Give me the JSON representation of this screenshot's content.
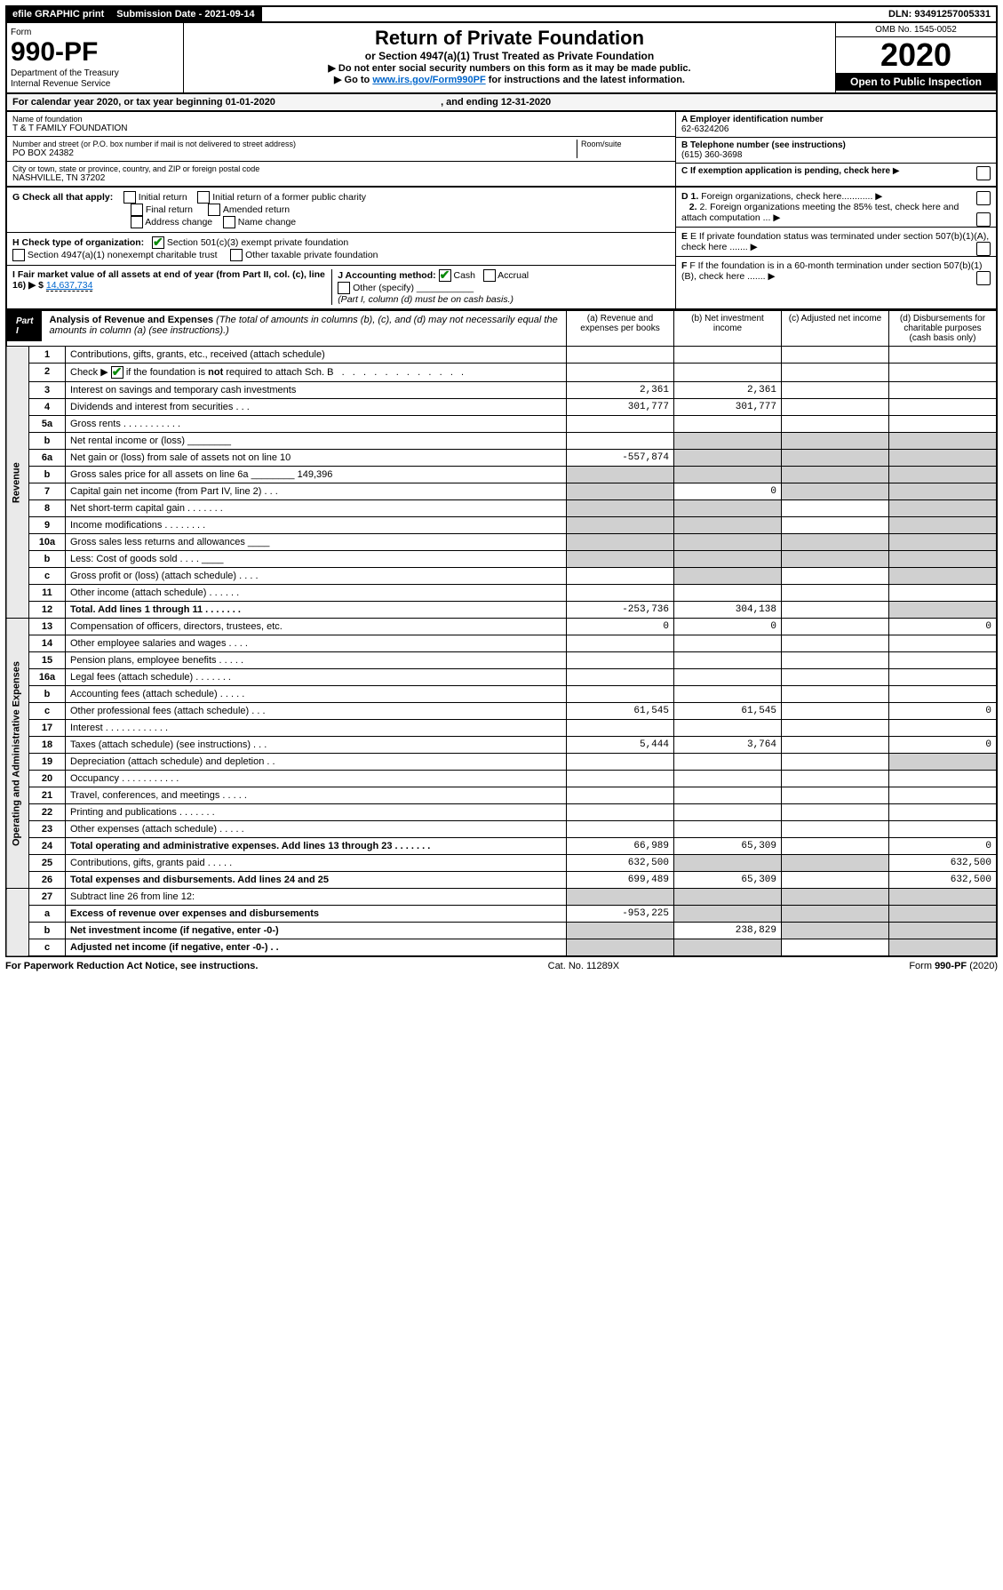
{
  "topbar": {
    "efile": "efile GRAPHIC print",
    "sub_label": "Submission Date - 2021-09-14",
    "dln": "DLN: 93491257005331"
  },
  "header": {
    "form_word": "Form",
    "form_num": "990-PF",
    "dept": "Department of the Treasury",
    "irs": "Internal Revenue Service",
    "title": "Return of Private Foundation",
    "subtitle": "or Section 4947(a)(1) Trust Treated as Private Foundation",
    "note1": "▶ Do not enter social security numbers on this form as it may be made public.",
    "note2_pre": "▶ Go to ",
    "note2_link": "www.irs.gov/Form990PF",
    "note2_post": " for instructions and the latest information.",
    "omb": "OMB No. 1545-0052",
    "year": "2020",
    "open": "Open to Public Inspection"
  },
  "calendar": {
    "pre": "For calendar year 2020, or tax year beginning ",
    "begin": "01-01-2020",
    "mid": " , and ending ",
    "end": "12-31-2020"
  },
  "entity": {
    "name_label": "Name of foundation",
    "name": "T & T FAMILY FOUNDATION",
    "addr_label": "Number and street (or P.O. box number if mail is not delivered to street address)",
    "addr": "PO BOX 24382",
    "room_label": "Room/suite",
    "city_label": "City or town, state or province, country, and ZIP or foreign postal code",
    "city": "NASHVILLE, TN  37202",
    "a_label": "A Employer identification number",
    "ein": "62-6324206",
    "b_label": "B Telephone number (see instructions)",
    "phone": "(615) 360-3698",
    "c_label": "C If exemption application is pending, check here"
  },
  "checks": {
    "g_label": "G Check all that apply:",
    "g_opts": [
      "Initial return",
      "Initial return of a former public charity",
      "Final return",
      "Amended return",
      "Address change",
      "Name change"
    ],
    "h_label": "H Check type of organization:",
    "h_sec501": "Section 501(c)(3) exempt private foundation",
    "h_4947": "Section 4947(a)(1) nonexempt charitable trust",
    "h_other": "Other taxable private foundation",
    "i_label": "I Fair market value of all assets at end of year (from Part II, col. (c), line 16) ▶ $",
    "fmv": "14,637,734",
    "j_label": "J Accounting method:",
    "j_cash": "Cash",
    "j_accrual": "Accrual",
    "j_other": "Other (specify)",
    "j_note": "(Part I, column (d) must be on cash basis.)",
    "d_label": "D 1. Foreign organizations, check here............",
    "d2_label": "2. Foreign organizations meeting the 85% test, check here and attach computation ...",
    "e_label": "E If private foundation status was terminated under section 507(b)(1)(A), check here .......",
    "f_label": "F If the foundation is in a 60-month termination under section 507(b)(1)(B), check here ......."
  },
  "part1": {
    "label": "Part I",
    "title": "Analysis of Revenue and Expenses",
    "title_note": " (The total of amounts in columns (b), (c), and (d) may not necessarily equal the amounts in column (a) (see instructions).)",
    "col_a": "(a) Revenue and expenses per books",
    "col_b": "(b) Net investment income",
    "col_c": "(c) Adjusted net income",
    "col_d": "(d) Disbursements for charitable purposes (cash basis only)"
  },
  "rows": [
    {
      "n": "1",
      "d": "Contributions, gifts, grants, etc., received (attach schedule)",
      "a": "",
      "b": "",
      "c": "",
      "dd": "",
      "section": "r"
    },
    {
      "n": "2",
      "d": "Check ▶ ☑ if the foundation is not required to attach Sch. B",
      "a": "",
      "b": "",
      "c": "",
      "dd": "",
      "section": "r",
      "bold_not": true,
      "dots": true
    },
    {
      "n": "3",
      "d": "Interest on savings and temporary cash investments",
      "a": "2,361",
      "b": "2,361",
      "c": "",
      "dd": "",
      "section": "r"
    },
    {
      "n": "4",
      "d": "Dividends and interest from securities  .  .  .",
      "a": "301,777",
      "b": "301,777",
      "c": "",
      "dd": "",
      "section": "r"
    },
    {
      "n": "5a",
      "d": "Gross rents  .  .  .  .  .  .  .  .  .  .  .",
      "a": "",
      "b": "",
      "c": "",
      "dd": "",
      "section": "r"
    },
    {
      "n": "b",
      "d": "Net rental income or (loss) ________",
      "a": "",
      "b": "",
      "c": "",
      "dd": "",
      "section": "r",
      "gray_b": true,
      "gray_c": true,
      "gray_d": true
    },
    {
      "n": "6a",
      "d": "Net gain or (loss) from sale of assets not on line 10",
      "a": "-557,874",
      "b": "",
      "c": "",
      "dd": "",
      "section": "r",
      "gray_b": true,
      "gray_c": true,
      "gray_d": true
    },
    {
      "n": "b",
      "d": "Gross sales price for all assets on line 6a ________ 149,396",
      "a": "",
      "b": "",
      "c": "",
      "dd": "",
      "section": "r",
      "gray_all": true
    },
    {
      "n": "7",
      "d": "Capital gain net income (from Part IV, line 2)  .  .  .",
      "a": "",
      "b": "0",
      "c": "",
      "dd": "",
      "section": "r",
      "gray_a": true,
      "gray_c": true,
      "gray_d": true
    },
    {
      "n": "8",
      "d": "Net short-term capital gain  .  .  .  .  .  .  .",
      "a": "",
      "b": "",
      "c": "",
      "dd": "",
      "section": "r",
      "gray_a": true,
      "gray_b": true,
      "gray_d": true
    },
    {
      "n": "9",
      "d": "Income modifications  .  .  .  .  .  .  .  .",
      "a": "",
      "b": "",
      "c": "",
      "dd": "",
      "section": "r",
      "gray_a": true,
      "gray_b": true,
      "gray_d": true
    },
    {
      "n": "10a",
      "d": "Gross sales less returns and allowances ____",
      "a": "",
      "b": "",
      "c": "",
      "dd": "",
      "section": "r",
      "gray_all": true
    },
    {
      "n": "b",
      "d": "Less: Cost of goods sold  .  .  .  . ____",
      "a": "",
      "b": "",
      "c": "",
      "dd": "",
      "section": "r",
      "gray_all": true
    },
    {
      "n": "c",
      "d": "Gross profit or (loss) (attach schedule)  .  .  .  .",
      "a": "",
      "b": "",
      "c": "",
      "dd": "",
      "section": "r",
      "gray_b": true,
      "gray_d": true
    },
    {
      "n": "11",
      "d": "Other income (attach schedule)  .  .  .  .  .  .",
      "a": "",
      "b": "",
      "c": "",
      "dd": "",
      "section": "r"
    },
    {
      "n": "12",
      "d": "Total. Add lines 1 through 11  .  .  .  .  .  .  .",
      "a": "-253,736",
      "b": "304,138",
      "c": "",
      "dd": "",
      "section": "r",
      "bold": true,
      "gray_d": true
    },
    {
      "n": "13",
      "d": "Compensation of officers, directors, trustees, etc.",
      "a": "0",
      "b": "0",
      "c": "",
      "dd": "0",
      "section": "e"
    },
    {
      "n": "14",
      "d": "Other employee salaries and wages  .  .  .  .",
      "a": "",
      "b": "",
      "c": "",
      "dd": "",
      "section": "e"
    },
    {
      "n": "15",
      "d": "Pension plans, employee benefits  .  .  .  .  .",
      "a": "",
      "b": "",
      "c": "",
      "dd": "",
      "section": "e"
    },
    {
      "n": "16a",
      "d": "Legal fees (attach schedule)  .  .  .  .  .  .  .",
      "a": "",
      "b": "",
      "c": "",
      "dd": "",
      "section": "e"
    },
    {
      "n": "b",
      "d": "Accounting fees (attach schedule)  .  .  .  .  .",
      "a": "",
      "b": "",
      "c": "",
      "dd": "",
      "section": "e"
    },
    {
      "n": "c",
      "d": "Other professional fees (attach schedule)  .  .  .",
      "a": "61,545",
      "b": "61,545",
      "c": "",
      "dd": "0",
      "section": "e"
    },
    {
      "n": "17",
      "d": "Interest  .  .  .  .  .  .  .  .  .  .  .  .",
      "a": "",
      "b": "",
      "c": "",
      "dd": "",
      "section": "e"
    },
    {
      "n": "18",
      "d": "Taxes (attach schedule) (see instructions)  .  .  .",
      "a": "5,444",
      "b": "3,764",
      "c": "",
      "dd": "0",
      "section": "e"
    },
    {
      "n": "19",
      "d": "Depreciation (attach schedule) and depletion  .  .",
      "a": "",
      "b": "",
      "c": "",
      "dd": "",
      "section": "e",
      "gray_d": true
    },
    {
      "n": "20",
      "d": "Occupancy  .  .  .  .  .  .  .  .  .  .  .",
      "a": "",
      "b": "",
      "c": "",
      "dd": "",
      "section": "e"
    },
    {
      "n": "21",
      "d": "Travel, conferences, and meetings  .  .  .  .  .",
      "a": "",
      "b": "",
      "c": "",
      "dd": "",
      "section": "e"
    },
    {
      "n": "22",
      "d": "Printing and publications  .  .  .  .  .  .  .",
      "a": "",
      "b": "",
      "c": "",
      "dd": "",
      "section": "e"
    },
    {
      "n": "23",
      "d": "Other expenses (attach schedule)  .  .  .  .  .",
      "a": "",
      "b": "",
      "c": "",
      "dd": "",
      "section": "e"
    },
    {
      "n": "24",
      "d": "Total operating and administrative expenses. Add lines 13 through 23  .  .  .  .  .  .  .",
      "a": "66,989",
      "b": "65,309",
      "c": "",
      "dd": "0",
      "section": "e",
      "bold": true
    },
    {
      "n": "25",
      "d": "Contributions, gifts, grants paid  .  .  .  .  .",
      "a": "632,500",
      "b": "",
      "c": "",
      "dd": "632,500",
      "section": "e",
      "gray_b": true,
      "gray_c": true
    },
    {
      "n": "26",
      "d": "Total expenses and disbursements. Add lines 24 and 25",
      "a": "699,489",
      "b": "65,309",
      "c": "",
      "dd": "632,500",
      "section": "e",
      "bold": true
    },
    {
      "n": "27",
      "d": "Subtract line 26 from line 12:",
      "a": "",
      "b": "",
      "c": "",
      "dd": "",
      "section": "x",
      "gray_all": true
    },
    {
      "n": "a",
      "d": "Excess of revenue over expenses and disbursements",
      "a": "-953,225",
      "b": "",
      "c": "",
      "dd": "",
      "section": "x",
      "bold": true,
      "gray_b": true,
      "gray_c": true,
      "gray_d": true
    },
    {
      "n": "b",
      "d": "Net investment income (if negative, enter -0-)",
      "a": "",
      "b": "238,829",
      "c": "",
      "dd": "",
      "section": "x",
      "bold": true,
      "gray_a": true,
      "gray_c": true,
      "gray_d": true
    },
    {
      "n": "c",
      "d": "Adjusted net income (if negative, enter -0-)  .  .",
      "a": "",
      "b": "",
      "c": "",
      "dd": "",
      "section": "x",
      "bold": true,
      "gray_a": true,
      "gray_b": true,
      "gray_d": true
    }
  ],
  "side": {
    "revenue": "Revenue",
    "expenses": "Operating and Administrative Expenses"
  },
  "footer": {
    "left": "For Paperwork Reduction Act Notice, see instructions.",
    "mid": "Cat. No. 11289X",
    "right": "Form 990-PF (2020)"
  }
}
